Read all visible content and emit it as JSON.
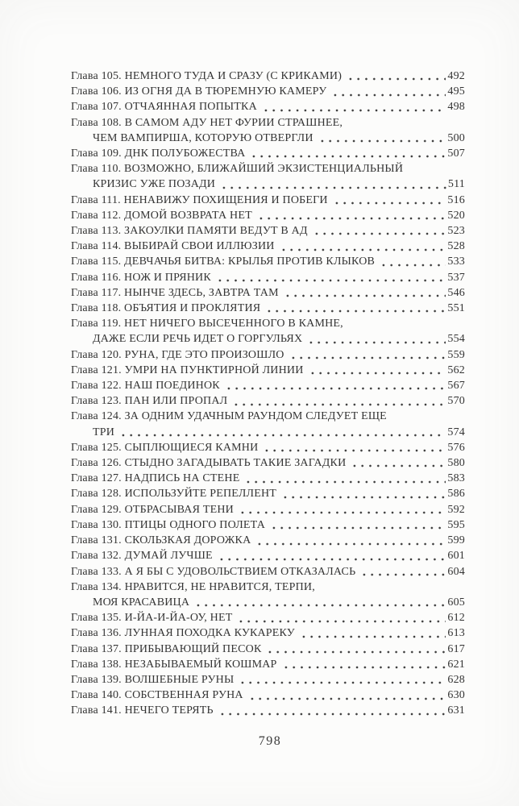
{
  "colors": {
    "background": "#fcfcfb",
    "text": "#343434"
  },
  "page_number": "798",
  "toc": {
    "entries": [
      {
        "lines": [
          "Глава 105. НЕМНОГО ТУДА И СРАЗУ (С КРИКАМИ)"
        ],
        "page": "492"
      },
      {
        "lines": [
          "Глава 106. ИЗ ОГНЯ ДА В ТЮРЕМНУЮ КАМЕРУ"
        ],
        "page": "495"
      },
      {
        "lines": [
          "Глава 107. ОТЧАЯННАЯ ПОПЫТКА"
        ],
        "page": "498"
      },
      {
        "lines": [
          "Глава 108. В САМОМ АДУ НЕТ ФУРИИ СТРАШНЕЕ,",
          "ЧЕМ ВАМПИРША, КОТОРУЮ ОТВЕРГЛИ"
        ],
        "page": "500"
      },
      {
        "lines": [
          "Глава 109. ДНК ПОЛУБОЖЕСТВА"
        ],
        "page": "507"
      },
      {
        "lines": [
          "Глава 110. ВОЗМОЖНО, БЛИЖАЙШИЙ ЭКЗИСТЕНЦИАЛЬНЫЙ",
          "КРИЗИС УЖЕ ПОЗАДИ"
        ],
        "page": "511"
      },
      {
        "lines": [
          "Глава 111. НЕНАВИЖУ ПОХИЩЕНИЯ И ПОБЕГИ"
        ],
        "page": "516"
      },
      {
        "lines": [
          "Глава 112. ДОМОЙ ВОЗВРАТА НЕТ"
        ],
        "page": "520"
      },
      {
        "lines": [
          "Глава 113. ЗАКОУЛКИ ПАМЯТИ ВЕДУТ В АД"
        ],
        "page": "523"
      },
      {
        "lines": [
          "Глава 114. ВЫБИРАЙ СВОИ ИЛЛЮЗИИ"
        ],
        "page": "528"
      },
      {
        "lines": [
          "Глава 115. ДЕВЧАЧЬЯ БИТВА: КРЫЛЬЯ ПРОТИВ КЛЫКОВ"
        ],
        "page": "533"
      },
      {
        "lines": [
          "Глава 116. НОЖ И ПРЯНИК"
        ],
        "page": "537"
      },
      {
        "lines": [
          "Глава 117. НЫНЧЕ ЗДЕСЬ, ЗАВТРА ТАМ"
        ],
        "page": "546"
      },
      {
        "lines": [
          "Глава 118. ОБЪЯТИЯ И ПРОКЛЯТИЯ"
        ],
        "page": "551"
      },
      {
        "lines": [
          "Глава 119. НЕТ НИЧЕГО ВЫСЕЧЕННОГО В КАМНЕ,",
          "ДАЖЕ ЕСЛИ РЕЧЬ ИДЕТ О ГОРГУЛЬЯХ"
        ],
        "page": "554"
      },
      {
        "lines": [
          "Глава 120. РУНА, ГДЕ ЭТО ПРОИЗОШЛО"
        ],
        "page": "559"
      },
      {
        "lines": [
          "Глава 121. УМРИ НА ПУНКТИРНОЙ ЛИНИИ"
        ],
        "page": "562"
      },
      {
        "lines": [
          "Глава 122. НАШ ПОЕДИНОК"
        ],
        "page": "567"
      },
      {
        "lines": [
          "Глава 123. ПАН ИЛИ ПРОПАЛ"
        ],
        "page": "570"
      },
      {
        "lines": [
          "Глава 124. ЗА ОДНИМ УДАЧНЫМ РАУНДОМ СЛЕДУЕТ ЕЩЕ",
          "ТРИ"
        ],
        "page": "574"
      },
      {
        "lines": [
          "Глава 125. СЫПЛЮЩИЕСЯ КАМНИ"
        ],
        "page": "576"
      },
      {
        "lines": [
          "Глава 126. СТЫДНО ЗАГАДЫВАТЬ ТАКИЕ ЗАГАДКИ"
        ],
        "page": "580"
      },
      {
        "lines": [
          "Глава 127. НАДПИСЬ НА СТЕНЕ"
        ],
        "page": "583"
      },
      {
        "lines": [
          "Глава 128. ИСПОЛЬЗУЙТЕ РЕПЕЛЛЕНТ"
        ],
        "page": "586"
      },
      {
        "lines": [
          "Глава 129. ОТБРАСЫВАЯ ТЕНИ"
        ],
        "page": "592"
      },
      {
        "lines": [
          "Глава 130. ПТИЦЫ ОДНОГО ПОЛЕТА"
        ],
        "page": "595"
      },
      {
        "lines": [
          "Глава 131. СКОЛЬЗКАЯ ДОРОЖКА"
        ],
        "page": "599"
      },
      {
        "lines": [
          "Глава 132. ДУМАЙ ЛУЧШЕ"
        ],
        "page": "601"
      },
      {
        "lines": [
          "Глава 133. А Я БЫ С УДОВОЛЬСТВИЕМ ОТКАЗАЛАСЬ"
        ],
        "page": "604"
      },
      {
        "lines": [
          "Глава 134. НРАВИТСЯ, НЕ НРАВИТСЯ, ТЕРПИ,",
          "МОЯ КРАСАВИЦА"
        ],
        "page": "605"
      },
      {
        "lines": [
          "Глава 135. И-ЙА-И-ЙА-ОУ, НЕТ"
        ],
        "page": "612"
      },
      {
        "lines": [
          "Глава 136. ЛУННАЯ ПОХОДКА КУКАРЕКУ"
        ],
        "page": "613"
      },
      {
        "lines": [
          "Глава 137. ПРИБЫВАЮЩИЙ ПЕСОК"
        ],
        "page": "617"
      },
      {
        "lines": [
          "Глава 138. НЕЗАБЫВАЕМЫЙ КОШМАР"
        ],
        "page": "621"
      },
      {
        "lines": [
          "Глава 139. ВОЛШЕБНЫЕ РУНЫ"
        ],
        "page": "628"
      },
      {
        "lines": [
          "Глава 140. СОБСТВЕННАЯ РУНА"
        ],
        "page": "630"
      },
      {
        "lines": [
          "Глава 141. НЕЧЕГО ТЕРЯТЬ"
        ],
        "page": "631"
      }
    ]
  }
}
